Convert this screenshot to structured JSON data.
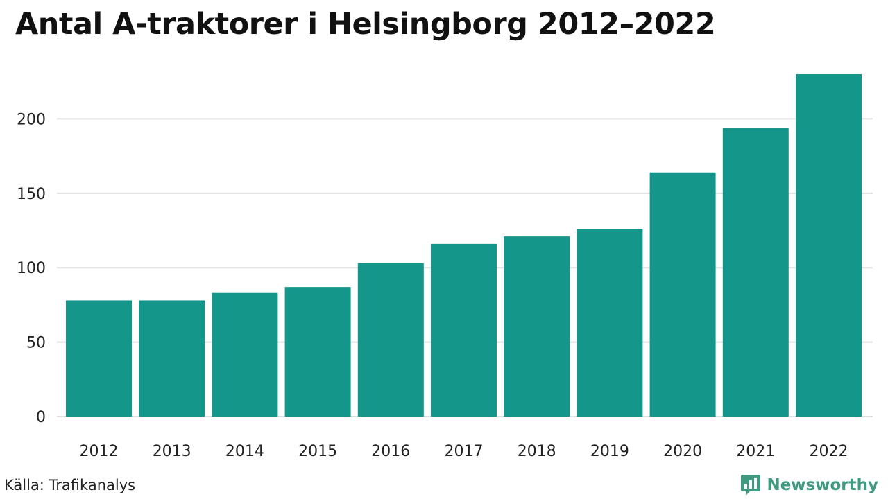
{
  "chart_data": {
    "type": "bar",
    "title": "Antal A-traktorer i Helsingborg 2012–2022",
    "categories": [
      "2012",
      "2013",
      "2014",
      "2015",
      "2016",
      "2017",
      "2018",
      "2019",
      "2020",
      "2021",
      "2022"
    ],
    "values": [
      78,
      78,
      83,
      87,
      103,
      116,
      121,
      126,
      164,
      194,
      230
    ],
    "ylim": [
      0,
      230
    ],
    "yticks": [
      0,
      50,
      100,
      150,
      200
    ],
    "xlabel": "",
    "ylabel": "",
    "grid": true,
    "bar_color": "#14968a",
    "legend": "none"
  },
  "footer": {
    "source": "Källa: Trafikanalys",
    "brand": "Newsworthy",
    "brand_icon": "newsworthy-logo-icon",
    "brand_color": "#3f9a80"
  }
}
